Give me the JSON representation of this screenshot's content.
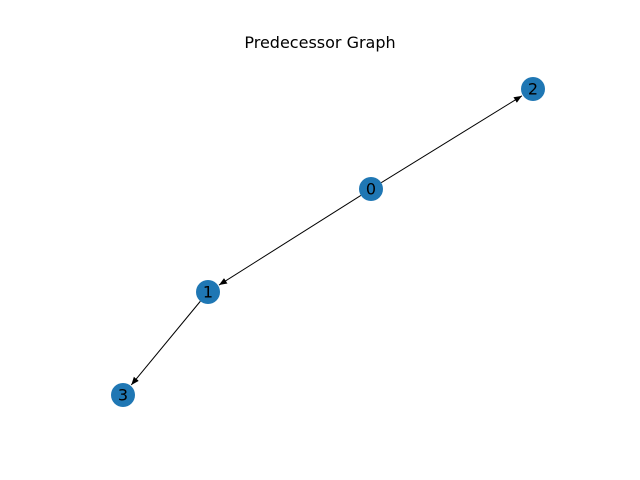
{
  "title": "Predecessor Graph",
  "node_color": "#1f77b4",
  "edge_color": "#000000",
  "label_color": "#000000",
  "nodes": [
    {
      "id": "0",
      "label": "0"
    },
    {
      "id": "1",
      "label": "1"
    },
    {
      "id": "2",
      "label": "2"
    },
    {
      "id": "3",
      "label": "3"
    }
  ],
  "edges": [
    {
      "from": "0",
      "to": "2",
      "directed": true
    },
    {
      "from": "0",
      "to": "1",
      "directed": true
    },
    {
      "from": "1",
      "to": "3",
      "directed": true
    }
  ]
}
